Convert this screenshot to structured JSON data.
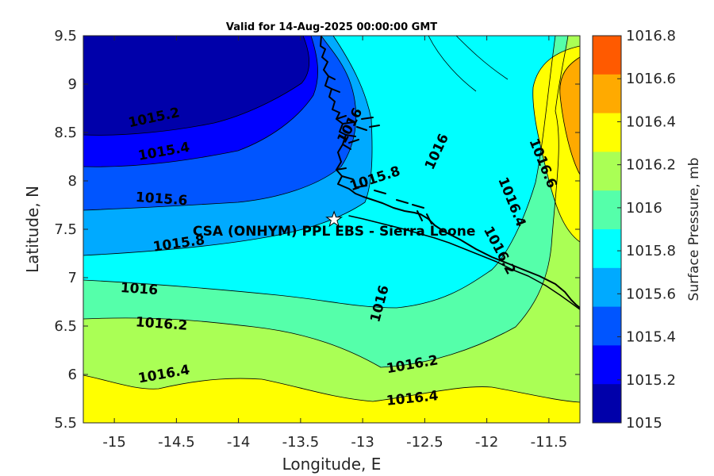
{
  "title": "Valid for 14-Aug-2025 00:00:00 GMT",
  "xlabel": "Longitude, E",
  "ylabel": "Latitude, N",
  "x_ticks": [
    "-15",
    "-14.5",
    "-14",
    "-13.5",
    "-13",
    "-12.5",
    "-12",
    "-11.5"
  ],
  "y_ticks": [
    "9.5",
    "9",
    "8.5",
    "8",
    "7.5",
    "7",
    "6.5",
    "6",
    "5.5"
  ],
  "colorbar": {
    "label": "Surface Pressure, mb",
    "ticks": [
      "1016.8",
      "1016.6",
      "1016.4",
      "1016.2",
      "1016",
      "1015.8",
      "1015.6",
      "1015.4",
      "1015.2",
      "1015"
    ],
    "colors": [
      "#ff5a00",
      "#ffaa00",
      "#ffff00",
      "#aaff55",
      "#55ffaa",
      "#00ffff",
      "#00aaff",
      "#0055ff",
      "#0000ff",
      "#0000aa"
    ]
  },
  "site": {
    "label": "CSA (ONHYM) PPL EBS  - Sierra Leone",
    "lon": -13.23,
    "lat": 7.6
  },
  "contour_labels": [
    {
      "text": "1015.2",
      "lon": -14.68,
      "lat": 8.65
    },
    {
      "text": "1015.4",
      "lon": -14.6,
      "lat": 8.3
    },
    {
      "text": "1015.6",
      "lon": -14.62,
      "lat": 7.81
    },
    {
      "text": "1015.8",
      "lon": -14.48,
      "lat": 7.35
    },
    {
      "text": "1016",
      "lon": -14.8,
      "lat": 6.88
    },
    {
      "text": "1016.2",
      "lon": -14.62,
      "lat": 6.52
    },
    {
      "text": "1016.4",
      "lon": -14.6,
      "lat": 6.0
    },
    {
      "text": "1015.8",
      "lon": -12.9,
      "lat": 8.02
    },
    {
      "text": "1016",
      "lon": -12.4,
      "lat": 8.3
    },
    {
      "text": "1016",
      "lon": -12.86,
      "lat": 6.73
    },
    {
      "text": "1016.2",
      "lon": -12.6,
      "lat": 6.1
    },
    {
      "text": "1016.4",
      "lon": -12.6,
      "lat": 5.75
    },
    {
      "text": "1016.6",
      "lon": -11.55,
      "lat": 8.18
    },
    {
      "text": "1016.4",
      "lon": -11.8,
      "lat": 7.78
    },
    {
      "text": "1016.2",
      "lon": -11.9,
      "lat": 7.28
    },
    {
      "text": "1016",
      "lon": -13.1,
      "lat": 8.57
    }
  ],
  "chart_data": {
    "type": "heatmap",
    "title": "Valid for 14-Aug-2025 00:00:00 GMT",
    "xlabel": "Longitude, E",
    "ylabel": "Latitude, N",
    "xlim": [
      -15.25,
      -11.25
    ],
    "ylim": [
      5.5,
      9.5
    ],
    "variable": "Surface Pressure, mb",
    "levels": [
      1015,
      1015.2,
      1015.4,
      1015.6,
      1015.8,
      1016,
      1016.2,
      1016.4,
      1016.6,
      1016.8
    ],
    "contours": [
      {
        "level": 1015.2,
        "x": [
          -15.25,
          -15.0,
          -14.5,
          -14.0,
          -13.6,
          -13.35,
          -13.4,
          -13.55
        ],
        "y": [
          8.53,
          8.55,
          8.6,
          8.72,
          8.9,
          9.15,
          9.4,
          9.5
        ]
      },
      {
        "level": 1015.4,
        "x": [
          -15.25,
          -14.9,
          -14.5,
          -14.1,
          -13.7,
          -13.45,
          -13.2,
          -13.1
        ],
        "y": [
          8.15,
          8.15,
          8.22,
          8.38,
          8.55,
          8.75,
          8.95,
          9.1
        ]
      },
      {
        "level": 1015.6,
        "x": [
          -15.25,
          -14.8,
          -14.3,
          -13.9,
          -13.5,
          -13.2,
          -13.0,
          -12.85
        ],
        "y": [
          7.7,
          7.75,
          7.82,
          7.9,
          8.02,
          8.2,
          8.35,
          8.55
        ]
      },
      {
        "level": 1015.8,
        "x": [
          -15.25,
          -14.8,
          -14.3,
          -13.8,
          -13.4,
          -13.0,
          -12.85,
          -12.78,
          -12.6,
          -12.3,
          -12.0,
          -11.75
        ],
        "y": [
          7.22,
          7.25,
          7.32,
          7.4,
          7.5,
          7.65,
          7.9,
          8.3,
          8.7,
          9.0,
          9.25,
          9.5
        ]
      },
      {
        "level": 1016.0,
        "x": [
          -15.25,
          -14.8,
          -14.3,
          -13.9,
          -13.5,
          -13.2,
          -12.9,
          -12.6,
          -12.35,
          -12.2,
          -12.0,
          -11.8,
          -11.65,
          -11.55
        ],
        "y": [
          6.95,
          6.92,
          6.88,
          6.82,
          6.75,
          6.66,
          6.66,
          6.82,
          7.1,
          7.8,
          8.4,
          8.9,
          9.2,
          9.5
        ]
      },
      {
        "level": 1016.2,
        "x": [
          -15.25,
          -14.8,
          -14.3,
          -13.8,
          -13.3,
          -12.9,
          -12.4,
          -12.0,
          -11.7,
          -11.55,
          -11.6,
          -11.75,
          -11.85,
          -11.75
        ],
        "y": [
          6.58,
          6.6,
          6.58,
          6.52,
          6.45,
          6.3,
          6.1,
          6.2,
          6.45,
          6.9,
          7.6,
          8.2,
          8.7,
          9.5
        ]
      },
      {
        "level": 1016.4,
        "x": [
          -15.25,
          -14.8,
          -14.5,
          -14.0,
          -13.6,
          -13.3,
          -13.0,
          -12.7,
          -12.4,
          -12.1,
          -11.8,
          -11.5,
          -11.3,
          -11.25
        ],
        "y": [
          5.98,
          5.88,
          5.9,
          6.02,
          6.02,
          5.92,
          5.78,
          5.72,
          5.75,
          5.85,
          5.93,
          5.88,
          5.78,
          5.75
        ]
      },
      {
        "level": 1016.4,
        "x": [
          -11.25,
          -11.4,
          -11.55,
          -11.7,
          -11.85,
          -11.95,
          -11.85,
          -11.6,
          -11.25
        ],
        "y": [
          7.0,
          7.2,
          7.5,
          7.9,
          8.3,
          8.8,
          9.1,
          9.3,
          9.5
        ]
      },
      {
        "level": 1016.6,
        "x": [
          -11.25,
          -11.35,
          -11.45,
          -11.5,
          -11.45,
          -11.35,
          -11.25
        ],
        "y": [
          7.6,
          7.9,
          8.3,
          8.8,
          9.1,
          9.25,
          9.3
        ]
      }
    ],
    "colorbar_range": [
      1015,
      1016.8
    ],
    "markers": [
      {
        "label": "CSA (ONHYM) PPL EBS  - Sierra Leone",
        "lon": -13.23,
        "lat": 7.6
      }
    ]
  }
}
